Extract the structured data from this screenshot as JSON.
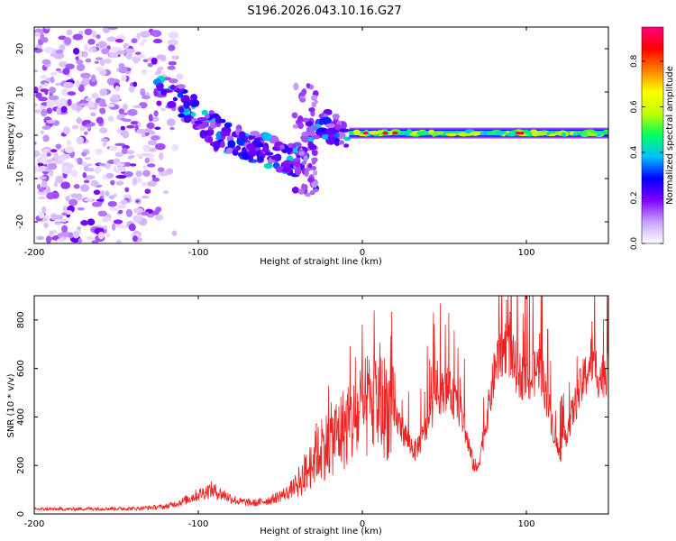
{
  "title": "S196.2026.043.10.16.G27",
  "chart_data": [
    {
      "type": "heatmap",
      "title": "S196.2026.043.10.16.G27",
      "xlabel": "Height of straight line (km)",
      "ylabel": "Frequency (Hz)",
      "xlim": [
        -200,
        150
      ],
      "ylim": [
        -25,
        25
      ],
      "xticks": [
        -200,
        -100,
        0,
        100
      ],
      "yticks": [
        -20,
        -10,
        0,
        10,
        20
      ],
      "colorbar": {
        "label": "Normalized spectral amplitude",
        "ticks": [
          0.0,
          0.2,
          0.4,
          0.6,
          0.8
        ],
        "tick_labels": [
          "0.0",
          "0.2",
          "0.4",
          "0.6",
          "0.8"
        ],
        "range": [
          0,
          0.95
        ],
        "colors": [
          "#ffffff",
          "#c8a0ff",
          "#8000ff",
          "#0000ff",
          "#00c0ff",
          "#00ff60",
          "#c0ff00",
          "#ffff00",
          "#ff8000",
          "#ff0000",
          "#ff0080"
        ]
      },
      "features": [
        {
          "name": "noise",
          "x_range": [
            -200,
            -120
          ],
          "freq_range": [
            -25,
            25
          ],
          "amplitude": 0.1
        },
        {
          "name": "descending-trend",
          "points": [
            [
              -125,
              11
            ],
            [
              -110,
              8
            ],
            [
              -100,
              4
            ],
            [
              -90,
              1
            ],
            [
              -80,
              -1
            ],
            [
              -70,
              -2
            ],
            [
              -60,
              -3
            ],
            [
              -50,
              -5
            ],
            [
              -40,
              -6
            ],
            [
              -30,
              2
            ],
            [
              -20,
              2
            ],
            [
              -10,
              1
            ]
          ],
          "amplitude": 0.3
        },
        {
          "name": "carrier-band",
          "x_range": [
            0,
            150
          ],
          "freq": 0.5,
          "amplitude": 0.45
        }
      ]
    },
    {
      "type": "line",
      "xlabel": "Height of straight line (km)",
      "ylabel": "SNR (10 * v/v)",
      "xlim": [
        -200,
        150
      ],
      "ylim": [
        0,
        900
      ],
      "xticks": [
        -200,
        -100,
        0,
        100
      ],
      "yticks": [
        0,
        200,
        400,
        600,
        800
      ],
      "color": "#ee2222",
      "series": [
        {
          "name": "SNR",
          "envelope": [
            {
              "x": -200,
              "y": 20
            },
            {
              "x": -180,
              "y": 20
            },
            {
              "x": -160,
              "y": 22
            },
            {
              "x": -140,
              "y": 22
            },
            {
              "x": -120,
              "y": 30
            },
            {
              "x": -110,
              "y": 50
            },
            {
              "x": -100,
              "y": 80
            },
            {
              "x": -92,
              "y": 100
            },
            {
              "x": -85,
              "y": 80
            },
            {
              "x": -75,
              "y": 50
            },
            {
              "x": -65,
              "y": 45
            },
            {
              "x": -55,
              "y": 60
            },
            {
              "x": -45,
              "y": 90
            },
            {
              "x": -35,
              "y": 160
            },
            {
              "x": -28,
              "y": 240
            },
            {
              "x": -20,
              "y": 300
            },
            {
              "x": -12,
              "y": 350
            },
            {
              "x": -5,
              "y": 380
            },
            {
              "x": 0,
              "y": 420
            },
            {
              "x": 8,
              "y": 460
            },
            {
              "x": 15,
              "y": 440
            },
            {
              "x": 22,
              "y": 380
            },
            {
              "x": 28,
              "y": 300
            },
            {
              "x": 32,
              "y": 260
            },
            {
              "x": 38,
              "y": 330
            },
            {
              "x": 45,
              "y": 480
            },
            {
              "x": 52,
              "y": 520
            },
            {
              "x": 60,
              "y": 420
            },
            {
              "x": 67,
              "y": 220
            },
            {
              "x": 70,
              "y": 180
            },
            {
              "x": 76,
              "y": 400
            },
            {
              "x": 82,
              "y": 640
            },
            {
              "x": 88,
              "y": 700
            },
            {
              "x": 95,
              "y": 580
            },
            {
              "x": 102,
              "y": 540
            },
            {
              "x": 108,
              "y": 620
            },
            {
              "x": 115,
              "y": 400
            },
            {
              "x": 120,
              "y": 240
            },
            {
              "x": 125,
              "y": 350
            },
            {
              "x": 132,
              "y": 500
            },
            {
              "x": 140,
              "y": 640
            },
            {
              "x": 145,
              "y": 560
            },
            {
              "x": 150,
              "y": 600
            }
          ],
          "peaks": [
            {
              "x": -28,
              "y": 370
            },
            {
              "x": -15,
              "y": 380
            },
            {
              "x": 2,
              "y": 440
            },
            {
              "x": 18,
              "y": 830
            },
            {
              "x": 38,
              "y": 500
            },
            {
              "x": 45,
              "y": 590
            },
            {
              "x": 50,
              "y": 540
            },
            {
              "x": 85,
              "y": 900
            },
            {
              "x": 88,
              "y": 880
            },
            {
              "x": 90,
              "y": 830
            },
            {
              "x": 108,
              "y": 740
            },
            {
              "x": 113,
              "y": 760
            },
            {
              "x": 140,
              "y": 790
            },
            {
              "x": 147,
              "y": 800
            }
          ]
        }
      ]
    }
  ]
}
